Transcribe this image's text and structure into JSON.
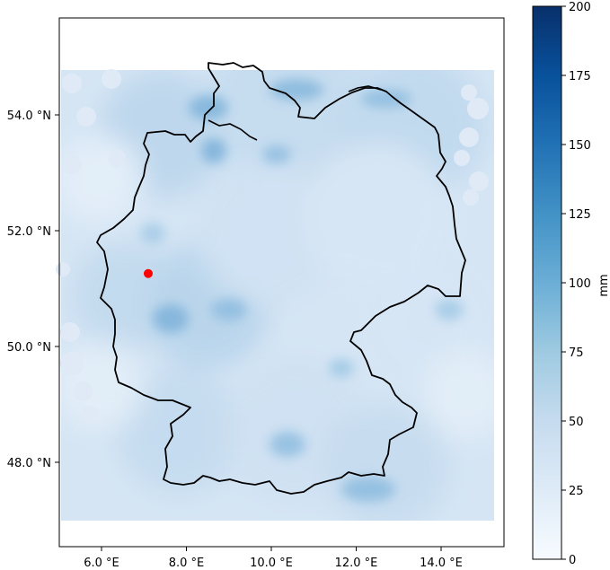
{
  "map": {
    "x_ticks": [
      "6.0 °E",
      "8.0 °E",
      "10.0 °E",
      "12.0 °E",
      "14.0 °E"
    ],
    "y_ticks": [
      "54.0 °N",
      "52.0 °N",
      "50.0 °N",
      "48.0 °N"
    ],
    "marker": {
      "lon": 7.1,
      "lat": 51.26,
      "color": "#ff0000"
    },
    "cmap_low": "#f7fbff",
    "cmap_high": "#08306b"
  },
  "colorbar": {
    "label": "mm",
    "ticks": [
      "0",
      "25",
      "50",
      "75",
      "100",
      "125",
      "150",
      "175",
      "200"
    ]
  }
}
